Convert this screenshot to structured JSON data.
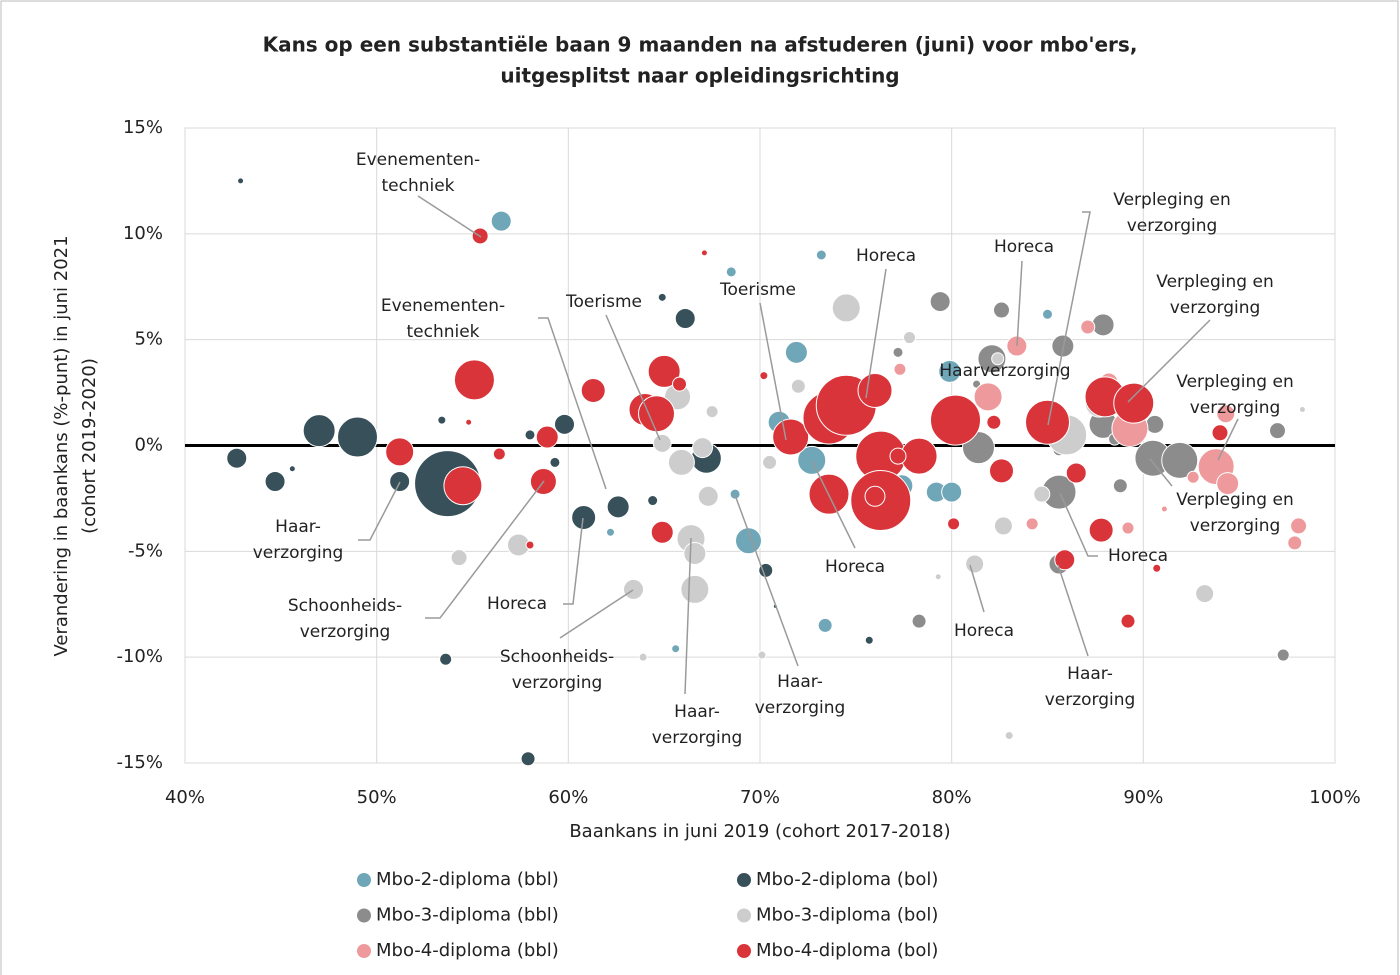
{
  "chart_data": {
    "type": "bubble",
    "title": [
      "Kans op een substantiële baan 9 maanden na afstuderen (juni) voor mbo'ers,",
      "uitgesplitst naar opleidingsrichting"
    ],
    "xlabel": "Baankans in juni 2019 (cohort 2017-2018)",
    "ylabel": [
      "Verandering in baankans (%-punt) in juni 2021",
      "(cohort 2019-2020)"
    ],
    "xlim": [
      40,
      100
    ],
    "xticks": [
      {
        "value": 40,
        "label": "40%"
      },
      {
        "value": 50,
        "label": "50%"
      },
      {
        "value": 60,
        "label": "60%"
      },
      {
        "value": 70,
        "label": "70%"
      },
      {
        "value": 80,
        "label": "80%"
      },
      {
        "value": 90,
        "label": "90%"
      },
      {
        "value": 100,
        "label": "100%"
      }
    ],
    "ylim": [
      -15,
      15
    ],
    "yticks": [
      {
        "value": -15,
        "label": "-15%"
      },
      {
        "value": -10,
        "label": "-10%"
      },
      {
        "value": -5,
        "label": "-5%"
      },
      {
        "value": 0,
        "label": "0%"
      },
      {
        "value": 5,
        "label": "5%"
      },
      {
        "value": 10,
        "label": "10%"
      },
      {
        "value": 15,
        "label": "15%"
      }
    ],
    "grid": true,
    "series": [
      {
        "name": "Mbo-2-diploma (bbl)",
        "color": "#6fa6b8",
        "x": [
          56.5,
          68.5,
          73.2,
          71.9,
          71.0,
          72.7,
          77.4,
          79.2,
          80.0,
          79.9,
          68.7,
          69.4,
          62.2,
          65.6,
          73.4,
          85.0
        ],
        "values": [
          10.6,
          8.2,
          9.0,
          4.4,
          1.1,
          -0.7,
          -1.9,
          -2.2,
          -2.2,
          3.5,
          -2.3,
          -4.5,
          -4.1,
          -9.6,
          -8.5,
          6.2
        ],
        "sizes": [
          10,
          5,
          5,
          11,
          11,
          14,
          11,
          10,
          10,
          11,
          5,
          13,
          4,
          4,
          7,
          5
        ]
      },
      {
        "name": "Mbo-2-diploma (bol)",
        "color": "#37505a",
        "x": [
          42.9,
          42.7,
          44.7,
          45.6,
          47.0,
          49.0,
          51.2,
          53.4,
          53.7,
          58.0,
          59.3,
          59.8,
          60.8,
          62.6,
          64.4,
          64.9,
          66.1,
          67.2,
          70.3,
          70.8,
          75.7,
          53.6,
          57.9
        ],
        "values": [
          12.5,
          -0.6,
          -1.7,
          -1.1,
          0.7,
          0.4,
          -1.7,
          1.2,
          -1.8,
          0.5,
          -0.8,
          1.0,
          -3.4,
          -2.9,
          -2.6,
          7.0,
          6.0,
          -0.6,
          -5.9,
          -7.6,
          -9.2,
          -10.1,
          -14.8
        ],
        "sizes": [
          3,
          10,
          10,
          3,
          16,
          20,
          10,
          4,
          33,
          5,
          5,
          10,
          12,
          11,
          5,
          4,
          10,
          15,
          7,
          2,
          4,
          6,
          7
        ]
      },
      {
        "name": "Mbo-3-diploma (bbl)",
        "color": "#8c8c8c",
        "x": [
          79.4,
          82.6,
          85.8,
          87.9,
          82.1,
          81.3,
          77.2,
          81.4,
          86.6,
          87.9,
          90.6,
          90.5,
          91.9,
          97.0,
          85.6,
          85.6,
          88.8,
          85.6,
          78.3,
          97.3,
          88.5
        ],
        "values": [
          6.8,
          6.4,
          4.7,
          5.7,
          4.1,
          2.9,
          4.4,
          -0.1,
          0.3,
          1.0,
          1.0,
          -0.6,
          -0.7,
          0.7,
          -2.2,
          -5.6,
          -1.9,
          -0.2,
          -8.3,
          -9.9,
          0.3
        ],
        "sizes": [
          10,
          8,
          11,
          11,
          14,
          4,
          5,
          16,
          8,
          14,
          9,
          18,
          18,
          8,
          17,
          10,
          7,
          6,
          7,
          6,
          6
        ]
      },
      {
        "name": "Mbo-3-diploma (bol)",
        "color": "#cdcdcd",
        "x": [
          74.5,
          77.8,
          72.0,
          65.7,
          67.5,
          64.9,
          65.9,
          67.0,
          67.3,
          66.4,
          66.6,
          66.6,
          63.4,
          57.4,
          54.3,
          63.9,
          70.1,
          70.5,
          81.2,
          82.7,
          84.7,
          79.3,
          83.0,
          93.2,
          98.3,
          87.7,
          86.0,
          82.4
        ],
        "values": [
          6.5,
          5.1,
          2.8,
          2.3,
          1.6,
          0.1,
          -0.8,
          -0.1,
          -2.4,
          -4.4,
          -5.1,
          -6.8,
          -6.8,
          -4.7,
          -5.3,
          -10.0,
          -9.9,
          -0.8,
          -5.6,
          -3.8,
          -2.3,
          -6.2,
          -13.7,
          -7.0,
          1.7,
          2.0,
          0.5,
          4.1
        ],
        "sizes": [
          14,
          6,
          7,
          13,
          6,
          9,
          13,
          10,
          10,
          14,
          11,
          14,
          10,
          11,
          8,
          4,
          4,
          7,
          9,
          9,
          8,
          3,
          4,
          9,
          3,
          14,
          20,
          6
        ]
      },
      {
        "name": "Mbo-4-diploma (bbl)",
        "color": "#ee9a9c",
        "x": [
          83.4,
          81.9,
          87.1,
          88.2,
          89.3,
          93.8,
          94.4,
          94.3,
          92.6,
          98.1,
          97.9,
          89.2,
          84.2,
          77.3,
          76.0,
          88.5,
          91.1
        ],
        "values": [
          4.7,
          2.3,
          5.6,
          3.0,
          0.8,
          -1.0,
          -1.8,
          1.5,
          -1.5,
          -3.8,
          -4.6,
          -3.9,
          -3.7,
          3.6,
          2.1,
          2.6,
          -3.0
        ],
        "sizes": [
          10,
          14,
          7,
          9,
          18,
          18,
          11,
          9,
          6,
          8,
          7,
          6,
          6,
          6,
          5,
          6,
          3
        ]
      },
      {
        "name": "Mbo-4-diploma (bol)",
        "color": "#d8343a",
        "x": [
          55.4,
          55.1,
          54.8,
          51.2,
          54.5,
          56.4,
          58.9,
          58.7,
          58.0,
          61.3,
          64.0,
          64.6,
          65.0,
          65.8,
          64.9,
          67.1,
          70.2,
          71.6,
          73.6,
          74.5,
          76.0,
          73.6,
          76.3,
          76.3,
          76.0,
          78.3,
          77.2,
          80.2,
          82.2,
          82.6,
          80.1,
          85.0,
          86.5,
          85.9,
          87.8,
          88.0,
          89.5,
          94.0,
          89.2,
          90.7
        ],
        "values": [
          9.9,
          3.1,
          1.1,
          -0.3,
          -1.9,
          -0.4,
          0.4,
          -1.7,
          -4.7,
          2.6,
          1.7,
          1.5,
          3.5,
          2.9,
          -4.1,
          9.1,
          3.3,
          0.4,
          1.3,
          1.9,
          2.6,
          -2.3,
          -0.5,
          -2.6,
          -2.4,
          -0.5,
          -0.5,
          1.2,
          1.1,
          -1.2,
          -3.7,
          1.1,
          -1.3,
          -5.4,
          -4.0,
          2.3,
          2.0,
          0.6,
          -8.3,
          -5.8
        ],
        "sizes": [
          8,
          20,
          3,
          14,
          19,
          6,
          11,
          13,
          4,
          12,
          16,
          18,
          16,
          7,
          11,
          3,
          4,
          18,
          26,
          30,
          17,
          20,
          25,
          30,
          10,
          18,
          8,
          25,
          7,
          12,
          6,
          22,
          10,
          10,
          12,
          20,
          20,
          8,
          7,
          4
        ]
      }
    ],
    "annotations": [
      {
        "lines": [
          "Evenementen-",
          "techniek"
        ]
      },
      {
        "lines": [
          "Evenementen-",
          "techniek"
        ]
      },
      {
        "lines": [
          "Toerisme"
        ]
      },
      {
        "lines": [
          "Toerisme"
        ]
      },
      {
        "lines": [
          "Horeca"
        ]
      },
      {
        "lines": [
          "Horeca"
        ]
      },
      {
        "lines": [
          "Verpleging en",
          "verzorging"
        ]
      },
      {
        "lines": [
          "Verpleging en",
          "verzorging"
        ]
      },
      {
        "lines": [
          "Haarverzorging"
        ]
      },
      {
        "lines": [
          "Verpleging en",
          "verzorging"
        ]
      },
      {
        "lines": [
          "Verpleging en",
          "verzorging"
        ]
      },
      {
        "lines": [
          "Haar-",
          "verzorging"
        ]
      },
      {
        "lines": [
          "Schoonheids-",
          "verzorging"
        ]
      },
      {
        "lines": [
          "Horeca"
        ]
      },
      {
        "lines": [
          "Schoonheids-",
          "verzorging"
        ]
      },
      {
        "lines": [
          "Haar-",
          "verzorging"
        ]
      },
      {
        "lines": [
          "Haar-",
          "verzorging"
        ]
      },
      {
        "lines": [
          "Horeca"
        ]
      },
      {
        "lines": [
          "Horeca"
        ]
      },
      {
        "lines": [
          "Horeca"
        ]
      },
      {
        "lines": [
          "Haar-",
          "verzorging"
        ]
      }
    ]
  }
}
